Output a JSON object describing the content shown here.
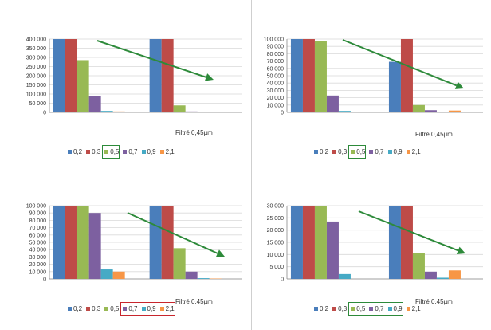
{
  "chart_data": [
    {
      "type": "bar",
      "categories": [
        "",
        ""
      ],
      "series": [
        {
          "name": "0,2",
          "values": [
            400000,
            400000
          ]
        },
        {
          "name": "0,3",
          "values": [
            400000,
            400000
          ]
        },
        {
          "name": "0,5",
          "values": [
            285000,
            38000
          ]
        },
        {
          "name": "0,7",
          "values": [
            88000,
            5000
          ]
        },
        {
          "name": "0,9",
          "values": [
            8000,
            2000
          ]
        },
        {
          "name": "2,1",
          "values": [
            5000,
            1500
          ]
        }
      ],
      "yticks": [
        "400 000",
        "350 000",
        "300 000",
        "250 000",
        "200 000",
        "150 000",
        "100 000",
        "50 000",
        "0"
      ],
      "ylim": [
        0,
        400000
      ],
      "xlabel": "Filtré 0,45µm",
      "grid": true,
      "legend": "bottom",
      "highlight": "0,5",
      "highlight_color": "#2d8a3a"
    },
    {
      "type": "bar",
      "categories": [
        "",
        ""
      ],
      "series": [
        {
          "name": "0,2",
          "values": [
            100000,
            69000
          ]
        },
        {
          "name": "0,3",
          "values": [
            100000,
            100000
          ]
        },
        {
          "name": "0,5",
          "values": [
            97000,
            10000
          ]
        },
        {
          "name": "0,7",
          "values": [
            23000,
            3000
          ]
        },
        {
          "name": "0,9",
          "values": [
            2000,
            1000
          ]
        },
        {
          "name": "2,1",
          "values": [
            0,
            2500
          ]
        }
      ],
      "yticks": [
        "100 000",
        "90 000",
        "80 000",
        "70 000",
        "60 000",
        "50 000",
        "40 000",
        "30 000",
        "20 000",
        "10 000",
        "0"
      ],
      "ylim": [
        0,
        100000
      ],
      "xlabel": "Filtré 0,45µm",
      "grid": true,
      "legend": "bottom",
      "highlight": "0,5",
      "highlight_color": "#2d8a3a"
    },
    {
      "type": "bar",
      "categories": [
        "",
        ""
      ],
      "series": [
        {
          "name": "0,2",
          "values": [
            100000,
            100000
          ]
        },
        {
          "name": "0,3",
          "values": [
            100000,
            100000
          ]
        },
        {
          "name": "0,5",
          "values": [
            100000,
            42000
          ]
        },
        {
          "name": "0,7",
          "values": [
            90000,
            10000
          ]
        },
        {
          "name": "0,9",
          "values": [
            13000,
            1000
          ]
        },
        {
          "name": "2,1",
          "values": [
            10000,
            500
          ]
        }
      ],
      "yticks": [
        "100 000",
        "90 000",
        "80 000",
        "70 000",
        "60 000",
        "50 000",
        "40 000",
        "30 000",
        "20 000",
        "10 000",
        "0"
      ],
      "ylim": [
        0,
        100000
      ],
      "xlabel": "Filtré 0,45µm",
      "grid": true,
      "legend": "bottom",
      "highlight": "0,7 0,9 2,1",
      "highlight_color": "#c8262d"
    },
    {
      "type": "bar",
      "categories": [
        "",
        ""
      ],
      "series": [
        {
          "name": "0,2",
          "values": [
            30000,
            30000
          ]
        },
        {
          "name": "0,3",
          "values": [
            30000,
            30000
          ]
        },
        {
          "name": "0,5",
          "values": [
            30000,
            10500
          ]
        },
        {
          "name": "0,7",
          "values": [
            23500,
            3000
          ]
        },
        {
          "name": "0,9",
          "values": [
            2000,
            500
          ]
        },
        {
          "name": "2,1",
          "values": [
            0,
            3500
          ]
        }
      ],
      "yticks": [
        "30 000",
        "25 000",
        "20 000",
        "15 000",
        "10 000",
        "5 000",
        "0"
      ],
      "ylim": [
        0,
        30000
      ],
      "xlabel": "Filtré 0,45µm",
      "grid": true,
      "legend": "bottom",
      "highlight": "0,5 0,7 0,9",
      "highlight_color": "#2d8a3a"
    }
  ],
  "colors": {
    "0,2": "#4a7ebb",
    "0,3": "#be4b48",
    "0,5": "#98b954",
    "0,7": "#7d60a0",
    "0,9": "#46aac5",
    "2,1": "#f79646",
    "arrow": "#2d8a3a",
    "grid": "#d9d9d9"
  }
}
